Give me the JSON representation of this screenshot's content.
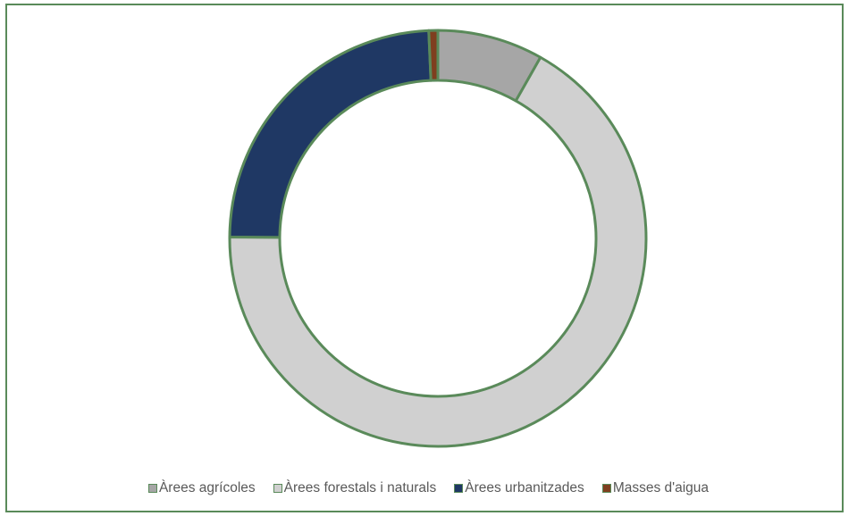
{
  "chart_data": {
    "type": "pie",
    "variant": "donut",
    "title": "",
    "categories": [
      "Àrees agrícoles",
      "Àrees forestals i naturals",
      "Àrees urbanitzades",
      "Masses d'aigua"
    ],
    "values": [
      8.2,
      66.9,
      24.2,
      0.7
    ],
    "value_unit": "percent (estimated)",
    "colors": [
      "#a6a6a6",
      "#d0d0d0",
      "#1f3864",
      "#7f3f1f"
    ],
    "slice_border_color": "#5a8a5a",
    "legend_position": "bottom"
  },
  "frame": {
    "border_color": "#5a8a5a"
  }
}
